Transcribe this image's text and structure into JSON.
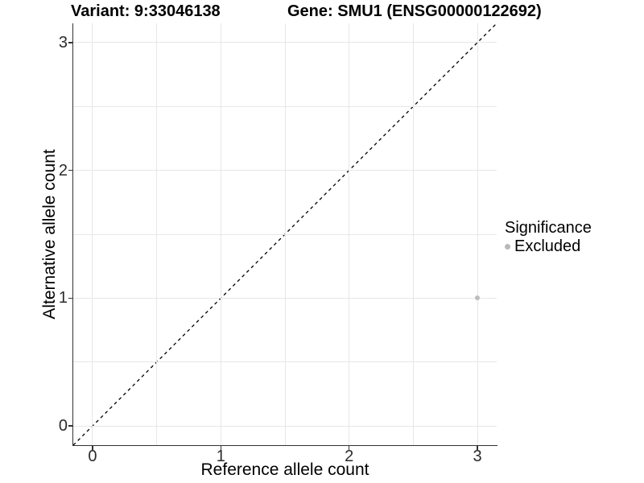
{
  "header": {
    "variant_title": "Variant: 9:33046138",
    "gene_title": "Gene: SMU1 (ENSG00000122692)"
  },
  "axes": {
    "x_label": "Reference allele count",
    "y_label": "Alternative allele count"
  },
  "legend": {
    "title": "Significance",
    "items": [
      {
        "label": "Excluded",
        "color": "#b9b9b9"
      }
    ]
  },
  "colors": {
    "grid": "#e7e7e7",
    "axis": "#333333",
    "point": "#bdbdbd",
    "dashed_line": "#000000"
  },
  "chart_data": {
    "type": "scatter",
    "title_left": "Variant: 9:33046138",
    "title_right": "Gene: SMU1 (ENSG00000122692)",
    "xlabel": "Reference allele count",
    "ylabel": "Alternative allele count",
    "xlim": [
      -0.15,
      3.15
    ],
    "ylim": [
      -0.15,
      3.15
    ],
    "x_ticks": [
      0,
      1,
      2,
      3
    ],
    "y_ticks": [
      0,
      1,
      2,
      3
    ],
    "x_grid": [
      0,
      0.5,
      1,
      1.5,
      2,
      2.5,
      3
    ],
    "y_grid": [
      0,
      0.5,
      1,
      1.5,
      2,
      2.5,
      3
    ],
    "grid": "on",
    "legend_position": "right",
    "series": [
      {
        "name": "Excluded",
        "color": "#bdbdbd",
        "points": [
          {
            "x": 3,
            "y": 1
          }
        ]
      }
    ],
    "identity_line": {
      "style": "dashed",
      "color": "#000000",
      "from": [
        -0.15,
        -0.15
      ],
      "to": [
        3.15,
        3.15
      ]
    }
  }
}
